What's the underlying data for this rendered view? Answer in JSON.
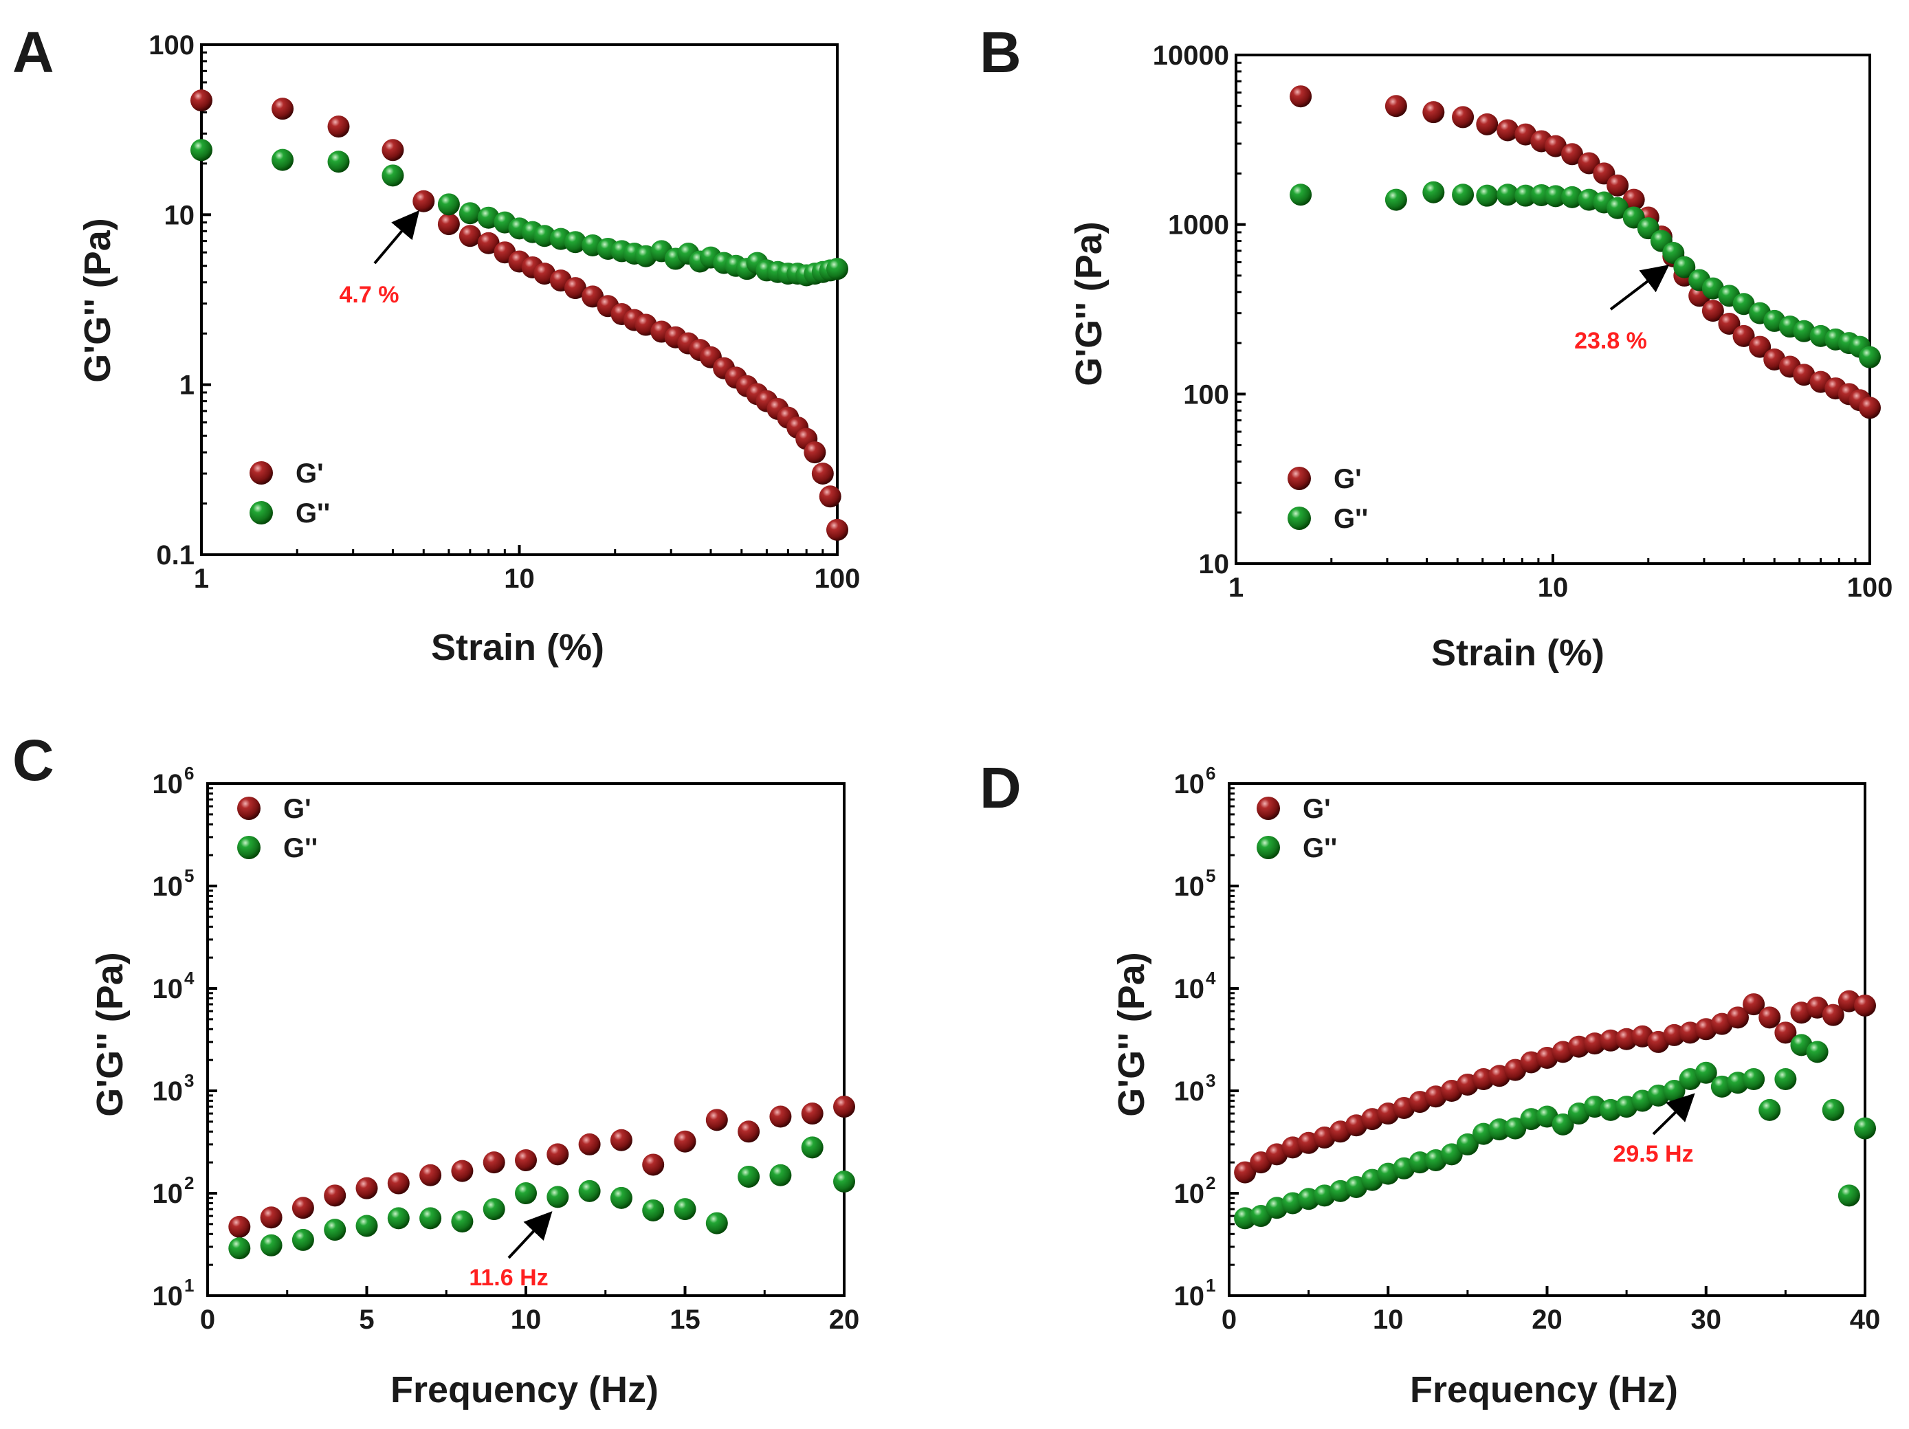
{
  "figure": {
    "panels": [
      "A",
      "B",
      "C",
      "D"
    ]
  },
  "colors": {
    "g_prime": "#8b1a1a",
    "g_double_prime": "#1a8a2a",
    "annotation": "#ff2020",
    "axis": "#000000"
  },
  "chart_data": [
    {
      "panel": "A",
      "type": "scatter",
      "xscale": "log",
      "yscale": "log",
      "xlim": [
        1,
        100
      ],
      "ylim": [
        0.1,
        100
      ],
      "xticks": [
        1,
        10,
        100
      ],
      "xtick_labels": [
        "1",
        "10",
        "100"
      ],
      "yticks": [
        0.1,
        1,
        10,
        100
      ],
      "ytick_labels": [
        "0.1",
        "1",
        "10",
        "100"
      ],
      "xlabel": "Strain (%)",
      "ylabel": "G'G'' (Pa)",
      "legend": {
        "position": "lower-left",
        "entries": [
          "G'",
          "G''"
        ]
      },
      "annotation": {
        "text": "4.7 %",
        "x": 4.7,
        "y": 11.8
      },
      "series": [
        {
          "name": "G'",
          "color": "g_prime",
          "x": [
            1,
            1.8,
            2.7,
            4.0,
            5.0,
            6.0,
            7.0,
            8.0,
            9.0,
            10.0,
            11.0,
            12.0,
            13.5,
            15.0,
            17.0,
            19.0,
            21.0,
            23.0,
            25.0,
            28.0,
            31.0,
            34.0,
            37.0,
            40.0,
            44.0,
            48.0,
            52.0,
            56.0,
            60.0,
            65.0,
            70.0,
            75.0,
            80.0,
            85.0,
            90.0,
            95.0,
            100.0
          ],
          "y": [
            47,
            42,
            33,
            24,
            12,
            8.8,
            7.5,
            6.8,
            6.0,
            5.3,
            4.9,
            4.5,
            4.1,
            3.7,
            3.3,
            2.9,
            2.6,
            2.4,
            2.25,
            2.05,
            1.9,
            1.75,
            1.6,
            1.45,
            1.25,
            1.1,
            0.98,
            0.88,
            0.8,
            0.72,
            0.64,
            0.56,
            0.48,
            0.4,
            0.3,
            0.22,
            0.14
          ]
        },
        {
          "name": "G''",
          "color": "g_double_prime",
          "x": [
            1,
            1.8,
            2.7,
            4.0,
            6.0,
            7.0,
            8.0,
            9.0,
            10.0,
            11.0,
            12.0,
            13.5,
            15.0,
            17.0,
            19.0,
            21.0,
            23.0,
            25.0,
            28.0,
            31.0,
            34.0,
            37.0,
            40.0,
            44.0,
            48.0,
            52.0,
            56.0,
            60.0,
            65.0,
            70.0,
            75.0,
            80.0,
            85.0,
            90.0,
            95.0,
            100.0
          ],
          "y": [
            24,
            21,
            20.5,
            17,
            11.5,
            10.2,
            9.6,
            9.0,
            8.3,
            7.9,
            7.5,
            7.2,
            6.9,
            6.6,
            6.3,
            6.1,
            5.9,
            5.7,
            6.1,
            5.5,
            5.9,
            5.3,
            5.6,
            5.2,
            5.0,
            4.8,
            5.2,
            4.7,
            4.6,
            4.5,
            4.5,
            4.4,
            4.5,
            4.6,
            4.7,
            4.8
          ]
        }
      ]
    },
    {
      "panel": "B",
      "type": "scatter",
      "xscale": "log",
      "yscale": "log",
      "xlim": [
        1,
        100
      ],
      "ylim": [
        10,
        10000
      ],
      "xticks": [
        1,
        10,
        100
      ],
      "xtick_labels": [
        "1",
        "10",
        "100"
      ],
      "yticks": [
        10,
        100,
        1000,
        10000
      ],
      "ytick_labels": [
        "10",
        "100",
        "1000",
        "10000"
      ],
      "xlabel": "Strain (%)",
      "ylabel": "G'G'' (Pa)",
      "legend": {
        "position": "lower-left",
        "entries": [
          "G'",
          "G''"
        ]
      },
      "annotation": {
        "text": "23.8 %",
        "x": 23.8,
        "y": 620
      },
      "series": [
        {
          "name": "G'",
          "color": "g_prime",
          "x": [
            1.6,
            3.2,
            4.2,
            5.2,
            6.2,
            7.2,
            8.2,
            9.2,
            10.2,
            11.5,
            13.0,
            14.5,
            16.0,
            18.0,
            20.0,
            22.0,
            24.0,
            26.0,
            29.0,
            32.0,
            36.0,
            40.0,
            45.0,
            50.0,
            56.0,
            62.0,
            70.0,
            78.0,
            86.0,
            93.0,
            100.0
          ],
          "y": [
            5700,
            5000,
            4600,
            4300,
            3900,
            3600,
            3400,
            3100,
            2900,
            2600,
            2300,
            2000,
            1700,
            1400,
            1100,
            850,
            650,
            500,
            380,
            310,
            260,
            220,
            190,
            160,
            145,
            130,
            118,
            108,
            100,
            92,
            83
          ]
        },
        {
          "name": "G''",
          "color": "g_double_prime",
          "x": [
            1.6,
            3.2,
            4.2,
            5.2,
            6.2,
            7.2,
            8.2,
            9.2,
            10.2,
            11.5,
            13.0,
            14.5,
            16.0,
            18.0,
            20.0,
            22.0,
            24.0,
            26.0,
            29.0,
            32.0,
            36.0,
            40.0,
            45.0,
            50.0,
            56.0,
            62.0,
            70.0,
            78.0,
            86.0,
            93.0,
            100.0
          ],
          "y": [
            1500,
            1400,
            1550,
            1500,
            1480,
            1500,
            1480,
            1490,
            1470,
            1450,
            1400,
            1350,
            1250,
            1100,
            950,
            800,
            680,
            560,
            470,
            420,
            380,
            340,
            300,
            270,
            250,
            235,
            220,
            210,
            200,
            190,
            165
          ]
        }
      ]
    },
    {
      "panel": "C",
      "type": "scatter",
      "xscale": "linear",
      "yscale": "log",
      "xlim": [
        0,
        20
      ],
      "ylim": [
        10,
        1000000
      ],
      "xticks": [
        0,
        5,
        10,
        15,
        20
      ],
      "xtick_labels": [
        "0",
        "5",
        "10",
        "15",
        "20"
      ],
      "yticks": [
        10,
        100,
        1000,
        10000,
        100000,
        1000000
      ],
      "ytick_exponents": [
        "1",
        "2",
        "3",
        "4",
        "5",
        "6"
      ],
      "ytick_base": "10",
      "xlabel": "Frequency (Hz)",
      "ylabel": "G'G'' (Pa)",
      "legend": {
        "position": "top-left",
        "entries": [
          "G'",
          "G''"
        ]
      },
      "annotation": {
        "text": "11.6 Hz",
        "x": 11.6,
        "y": 88
      },
      "series": [
        {
          "name": "G'",
          "color": "g_prime",
          "x": [
            1,
            2,
            3,
            4,
            5,
            6,
            7,
            8,
            9,
            10,
            11,
            12,
            13,
            14,
            15,
            16,
            17,
            18,
            19,
            20
          ],
          "y": [
            47,
            58,
            72,
            95,
            112,
            125,
            150,
            165,
            200,
            210,
            240,
            300,
            330,
            190,
            320,
            520,
            400,
            560,
            600,
            700
          ]
        },
        {
          "name": "G''",
          "color": "g_double_prime",
          "x": [
            1,
            2,
            3,
            4,
            5,
            6,
            7,
            8,
            9,
            10,
            11,
            12,
            13,
            14,
            15,
            16,
            17,
            18,
            19,
            20
          ],
          "y": [
            29,
            31,
            35,
            44,
            48,
            57,
            57,
            53,
            70,
            100,
            92,
            105,
            90,
            68,
            70,
            51,
            145,
            150,
            280,
            130
          ]
        }
      ]
    },
    {
      "panel": "D",
      "type": "scatter",
      "xscale": "linear",
      "yscale": "log",
      "xlim": [
        0,
        40
      ],
      "ylim": [
        10,
        1000000
      ],
      "xticks": [
        0,
        10,
        20,
        30,
        40
      ],
      "xtick_labels": [
        "0",
        "10",
        "20",
        "30",
        "40"
      ],
      "yticks": [
        10,
        100,
        1000,
        10000,
        100000,
        1000000
      ],
      "ytick_exponents": [
        "1",
        "2",
        "3",
        "4",
        "5",
        "6"
      ],
      "ytick_base": "10",
      "xlabel": "Frequency (Hz)",
      "ylabel": "G'G'' (Pa)",
      "legend": {
        "position": "top-left",
        "entries": [
          "G'",
          "G''"
        ]
      },
      "annotation": {
        "text": "29.5 Hz",
        "x": 29.5,
        "y": 1500
      },
      "series": [
        {
          "name": "G'",
          "color": "g_prime",
          "x": [
            1,
            2,
            3,
            4,
            5,
            6,
            7,
            8,
            9,
            10,
            11,
            12,
            13,
            14,
            15,
            16,
            17,
            18,
            19,
            20,
            21,
            22,
            23,
            24,
            25,
            26,
            27,
            28,
            29,
            30,
            31,
            32,
            33,
            34,
            35,
            36,
            37,
            38,
            39,
            40
          ],
          "y": [
            160,
            200,
            240,
            280,
            310,
            350,
            400,
            460,
            530,
            600,
            680,
            780,
            880,
            1000,
            1150,
            1300,
            1400,
            1600,
            1900,
            2100,
            2400,
            2700,
            2900,
            3100,
            3200,
            3400,
            3000,
            3500,
            3700,
            4000,
            4500,
            5200,
            7000,
            5200,
            3700,
            5800,
            6500,
            5500,
            7500,
            6800
          ]
        },
        {
          "name": "G''",
          "color": "g_double_prime",
          "x": [
            1,
            2,
            3,
            4,
            5,
            6,
            7,
            8,
            9,
            10,
            11,
            12,
            13,
            14,
            15,
            16,
            17,
            18,
            19,
            20,
            21,
            22,
            23,
            24,
            25,
            26,
            27,
            28,
            29,
            30,
            31,
            32,
            33,
            34,
            35,
            36,
            37,
            38,
            39,
            40
          ],
          "y": [
            57,
            60,
            72,
            80,
            88,
            95,
            105,
            115,
            135,
            155,
            175,
            200,
            210,
            240,
            300,
            380,
            420,
            430,
            530,
            560,
            470,
            600,
            700,
            650,
            700,
            800,
            900,
            1000,
            1300,
            1500,
            1100,
            1200,
            1300,
            650,
            1300,
            2800,
            2400,
            650,
            95,
            430
          ]
        }
      ]
    }
  ]
}
